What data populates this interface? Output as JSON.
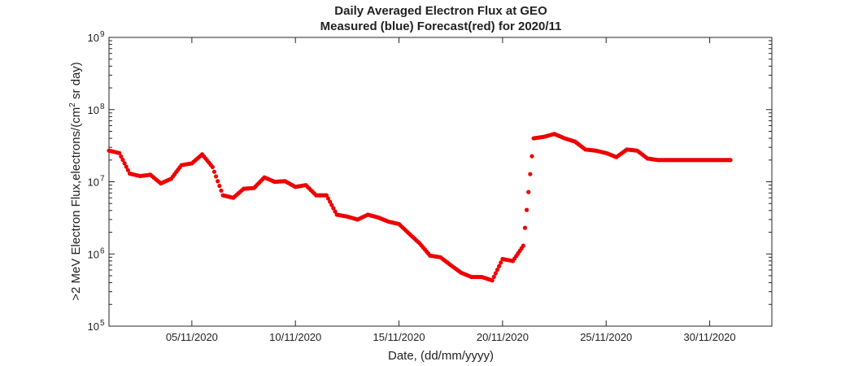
{
  "chart_data": {
    "type": "scatter",
    "title": "Daily Averaged Electron Flux at GEO",
    "subtitle": "Measured (blue) Forecast(red) for 2020/11",
    "xlabel": "Date, (dd/mm/yyyy)",
    "ylabel_main": ">2 MeV Electron Flux,electrons/(cm",
    "ylabel_sup": "2",
    "ylabel_tail": " sr day)",
    "y_scale": "log",
    "ylim": [
      100000,
      1000000000
    ],
    "xlim": [
      "2020-11-01",
      "2020-12-03"
    ],
    "grid": false,
    "y_ticks": [
      {
        "value": 100000,
        "base": "10",
        "exp": "5"
      },
      {
        "value": 1000000,
        "base": "10",
        "exp": "6"
      },
      {
        "value": 10000000,
        "base": "10",
        "exp": "7"
      },
      {
        "value": 100000000,
        "base": "10",
        "exp": "8"
      },
      {
        "value": 1000000000,
        "base": "10",
        "exp": "9"
      }
    ],
    "x_ticks": [
      {
        "value": "2020-11-05",
        "label": "05/11/2020"
      },
      {
        "value": "2020-11-10",
        "label": "10/11/2020"
      },
      {
        "value": "2020-11-15",
        "label": "15/11/2020"
      },
      {
        "value": "2020-11-20",
        "label": "20/11/2020"
      },
      {
        "value": "2020-11-25",
        "label": "25/11/2020"
      },
      {
        "value": "2020-11-30",
        "label": "30/11/2020"
      }
    ],
    "series": [
      {
        "color": "#ee0000",
        "x": [
          "2020-11-01 00:00",
          "2020-11-01 12:00",
          "2020-11-02 00:00",
          "2020-11-02 12:00",
          "2020-11-03 00:00",
          "2020-11-03 12:00",
          "2020-11-04 00:00",
          "2020-11-04 12:00",
          "2020-11-05 00:00",
          "2020-11-05 12:00",
          "2020-11-06 00:00",
          "2020-11-06 12:00",
          "2020-11-07 00:00",
          "2020-11-07 12:00",
          "2020-11-08 00:00",
          "2020-11-08 12:00",
          "2020-11-09 00:00",
          "2020-11-09 12:00",
          "2020-11-10 00:00",
          "2020-11-10 12:00",
          "2020-11-11 00:00",
          "2020-11-11 12:00",
          "2020-11-12 00:00",
          "2020-11-12 12:00",
          "2020-11-13 00:00",
          "2020-11-13 12:00",
          "2020-11-14 00:00",
          "2020-11-14 12:00",
          "2020-11-15 00:00",
          "2020-11-15 12:00",
          "2020-11-16 00:00",
          "2020-11-16 12:00",
          "2020-11-17 00:00",
          "2020-11-17 12:00",
          "2020-11-18 00:00",
          "2020-11-18 12:00",
          "2020-11-19 00:00",
          "2020-11-19 12:00",
          "2020-11-20 00:00",
          "2020-11-20 12:00",
          "2020-11-21 00:00",
          "2020-11-21 12:00",
          "2020-11-22 00:00",
          "2020-11-22 12:00",
          "2020-11-23 00:00",
          "2020-11-23 12:00",
          "2020-11-24 00:00",
          "2020-11-24 12:00",
          "2020-11-25 00:00",
          "2020-11-25 12:00",
          "2020-11-26 00:00",
          "2020-11-26 12:00",
          "2020-11-27 00:00",
          "2020-11-27 12:00",
          "2020-11-28 00:00",
          "2020-11-28 12:00",
          "2020-11-29 00:00",
          "2020-11-29 12:00",
          "2020-11-30 00:00",
          "2020-11-30 12:00",
          "2020-12-01 00:00"
        ],
        "y": [
          27000000,
          25000000,
          13000000,
          12000000,
          12500000,
          9500000,
          11000000,
          17000000,
          18000000,
          24000000,
          16000000,
          6500000,
          6000000,
          8000000,
          8200000,
          11500000,
          10000000,
          10200000,
          8500000,
          9000000,
          6500000,
          6500000,
          3500000,
          3300000,
          3000000,
          3500000,
          3200000,
          2800000,
          2600000,
          1900000,
          1400000,
          950000,
          900000,
          700000,
          550000,
          480000,
          480000,
          430000,
          850000,
          800000,
          1300000,
          40000000,
          42000000,
          46000000,
          40000000,
          36000000,
          28000000,
          27000000,
          25000000,
          22000000,
          28000000,
          27000000,
          21000000,
          20000000,
          20000000,
          20000000,
          20000000,
          20000000,
          20000000,
          20000000,
          20000000
        ]
      }
    ]
  }
}
